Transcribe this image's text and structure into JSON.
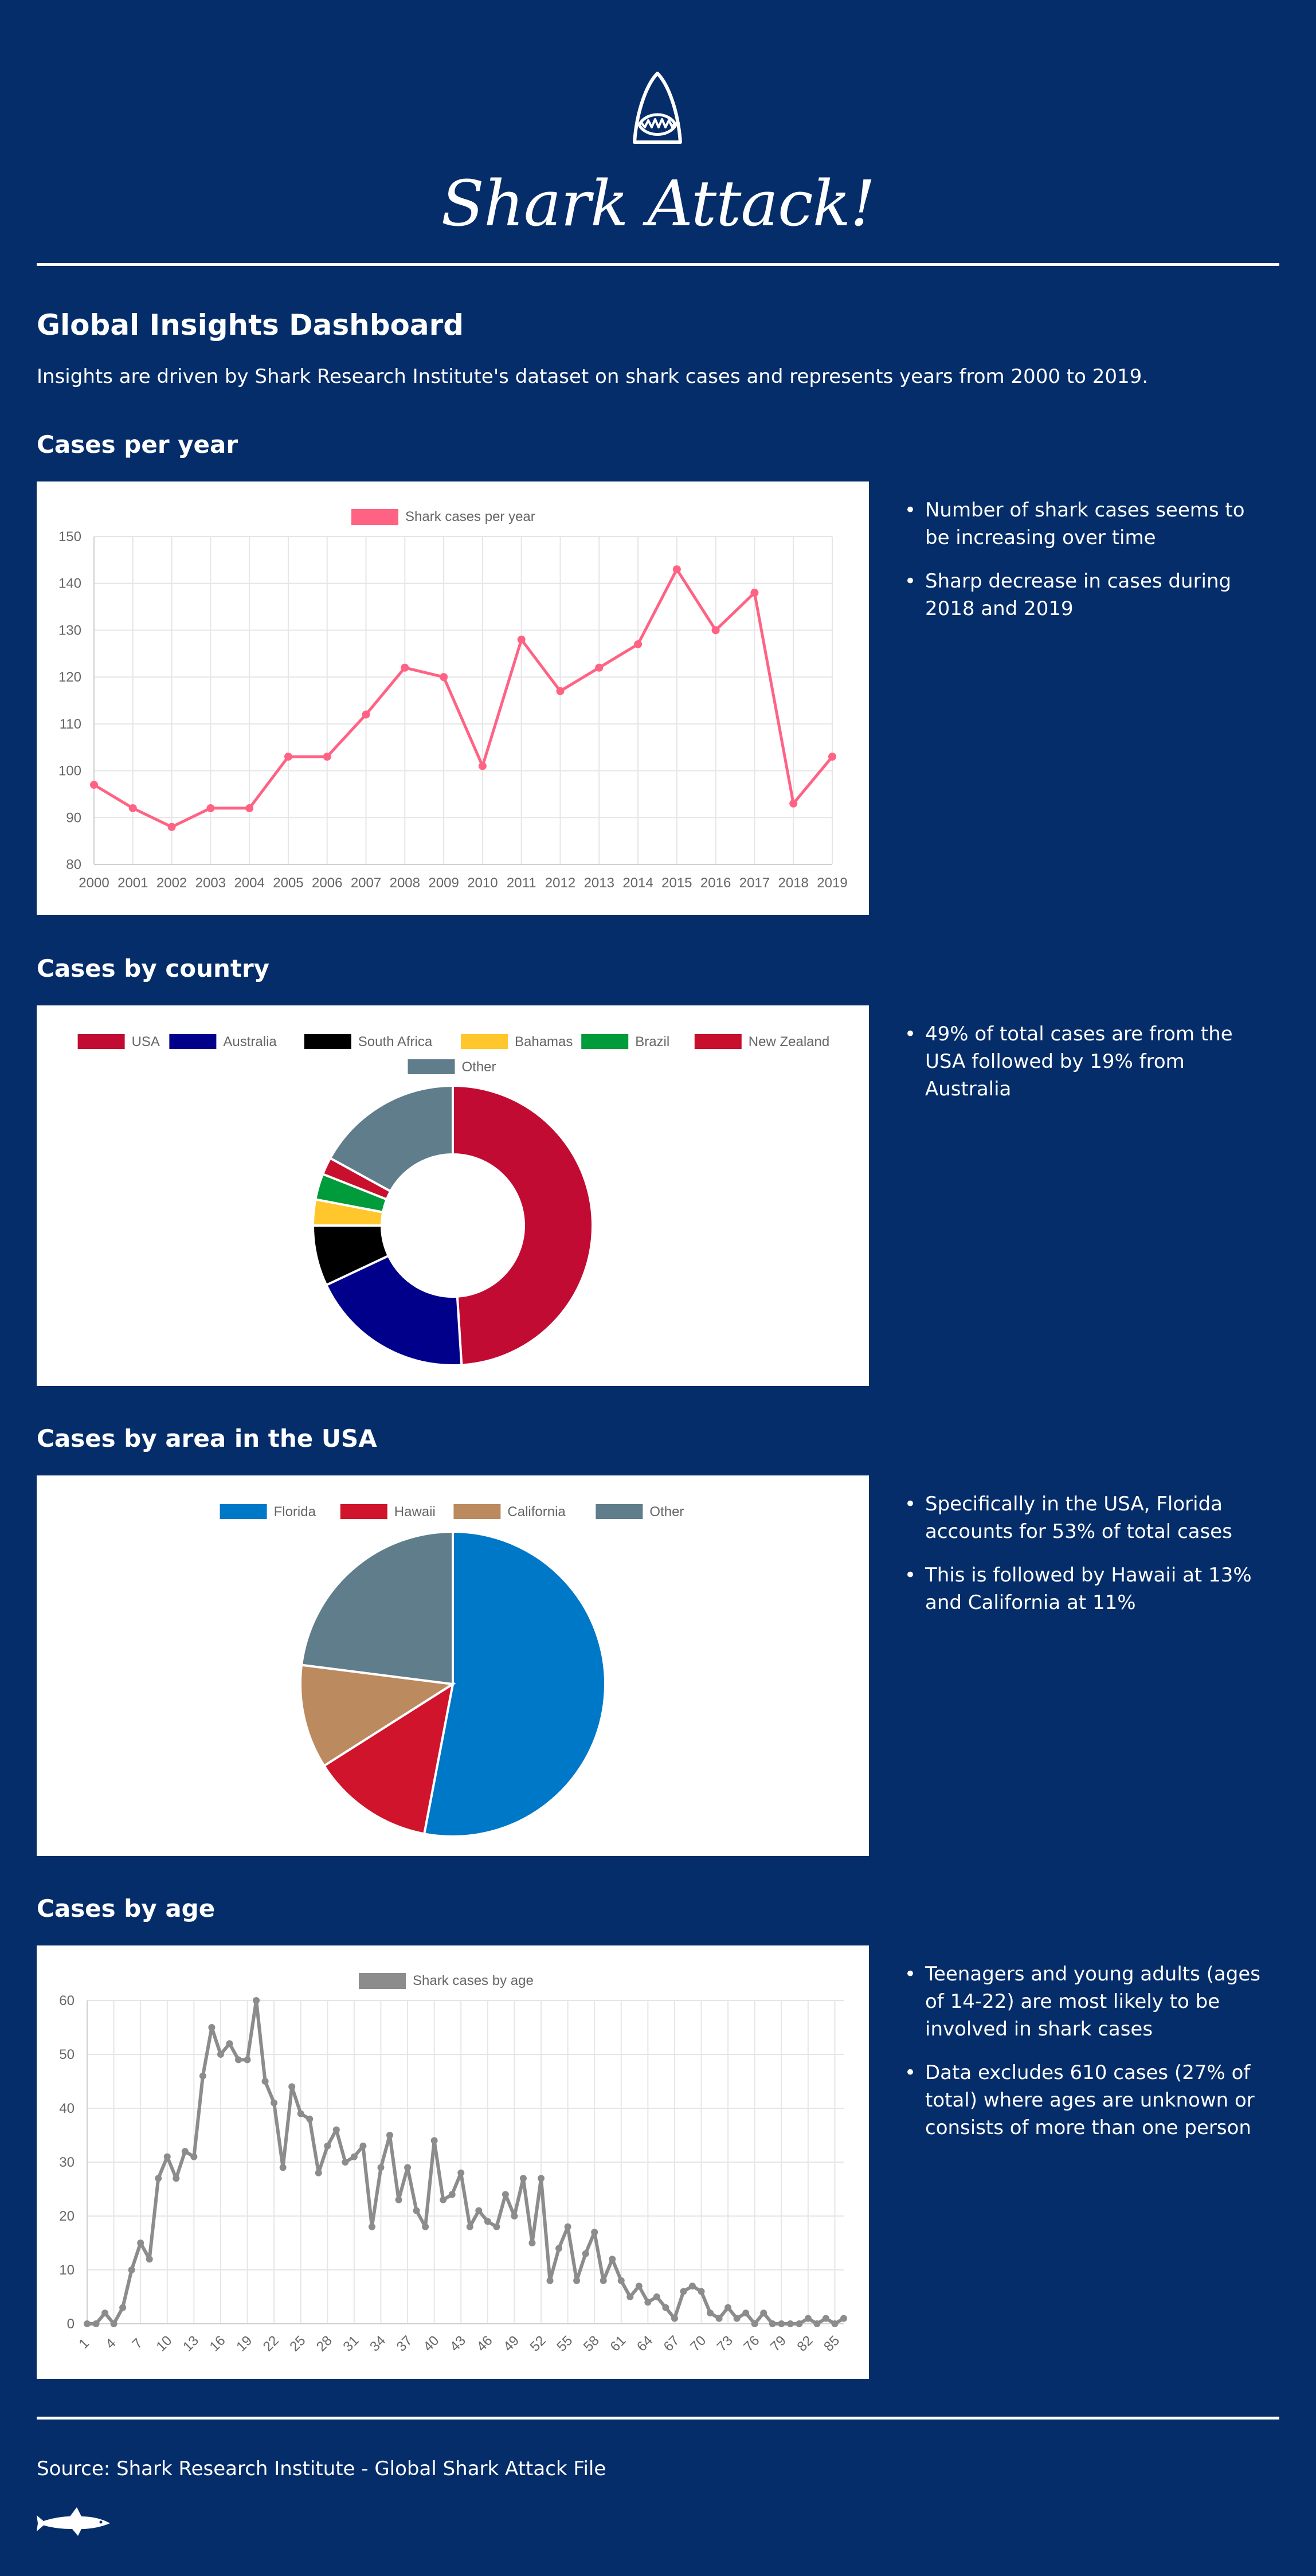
{
  "header": {
    "title": "Shark Attack!",
    "logo_icon": "shark-jaws-icon"
  },
  "intro": {
    "heading": "Global Insights Dashboard",
    "description": "Insights are driven by Shark Research Institute's dataset on shark cases and represents years from 2000 to 2019."
  },
  "colors": {
    "background": "#052d69",
    "cases_line": "#ff6384",
    "age_line": "#8c8c8c"
  },
  "sections": [
    {
      "title": "Cases per year",
      "insights": [
        "Number of shark cases seems to be increasing over time",
        "Sharp decrease in cases during 2018 and 2019"
      ]
    },
    {
      "title": "Cases by country",
      "insights": [
        "49% of total cases are from the USA followed by 19% from Australia"
      ]
    },
    {
      "title": "Cases by area in the USA",
      "insights": [
        "Specifically in the USA, Florida accounts for 53% of total cases",
        "This is followed by Hawaii at 13% and California at 11%"
      ]
    },
    {
      "title": "Cases by age",
      "insights": [
        "Teenagers and young adults (ages of 14-22) are most likely to be involved in shark cases",
        "Data excludes 610 cases (27% of total) where ages are unknown or consists of more than one person"
      ]
    }
  ],
  "chart_data": [
    {
      "type": "line",
      "legend_position": "top",
      "grid": true,
      "series": [
        {
          "name": "Shark cases per year",
          "color": "#ff6384",
          "x": [
            "2000",
            "2001",
            "2002",
            "2003",
            "2004",
            "2005",
            "2006",
            "2007",
            "2008",
            "2009",
            "2010",
            "2011",
            "2012",
            "2013",
            "2014",
            "2015",
            "2016",
            "2017",
            "2018",
            "2019"
          ],
          "values": [
            97,
            92,
            88,
            92,
            92,
            103,
            103,
            112,
            122,
            120,
            101,
            128,
            117,
            122,
            127,
            143,
            130,
            138,
            93,
            103
          ]
        }
      ],
      "ylim": [
        80,
        150
      ],
      "yticks": [
        80,
        90,
        100,
        110,
        120,
        130,
        140,
        150
      ]
    },
    {
      "type": "pie",
      "donut": true,
      "legend_position": "top",
      "categories": [
        "USA",
        "Australia",
        "South Africa",
        "Bahamas",
        "Brazil",
        "New Zealand",
        "Other"
      ],
      "values": [
        49,
        19,
        7,
        3,
        3,
        2,
        17
      ],
      "colors": [
        "#c10b33",
        "#00008b",
        "#000000",
        "#ffc72c",
        "#009b3a",
        "#c8102e",
        "#607d8b"
      ]
    },
    {
      "type": "pie",
      "donut": false,
      "legend_position": "top",
      "categories": [
        "Florida",
        "Hawaii",
        "California",
        "Other"
      ],
      "values": [
        53,
        13,
        11,
        23
      ],
      "colors": [
        "#0078c8",
        "#cf142b",
        "#bc8a5f",
        "#607d8b"
      ]
    },
    {
      "type": "line",
      "legend_position": "top",
      "grid": true,
      "series": [
        {
          "name": "Shark cases by age",
          "color": "#8c8c8c",
          "x_start": 1,
          "values": [
            0,
            0,
            2,
            0,
            3,
            10,
            15,
            12,
            27,
            31,
            27,
            32,
            31,
            46,
            55,
            50,
            52,
            49,
            49,
            60,
            45,
            41,
            29,
            44,
            39,
            38,
            28,
            33,
            36,
            30,
            31,
            33,
            18,
            29,
            35,
            23,
            29,
            21,
            18,
            34,
            23,
            24,
            28,
            18,
            21,
            19,
            18,
            24,
            20,
            27,
            15,
            27,
            8,
            14,
            18,
            8,
            13,
            17,
            8,
            12,
            8,
            5,
            7,
            4,
            5,
            3,
            1,
            6,
            7,
            6,
            2,
            1,
            3,
            1,
            2,
            0,
            2,
            0,
            0,
            0,
            0,
            1,
            0,
            1,
            0,
            1
          ]
        }
      ],
      "ylim": [
        0,
        60
      ],
      "yticks": [
        0,
        10,
        20,
        30,
        40,
        50,
        60
      ],
      "xticks": [
        "1",
        "4",
        "7",
        "10",
        "13",
        "16",
        "19",
        "22",
        "25",
        "28",
        "31",
        "34",
        "37",
        "40",
        "43",
        "46",
        "49",
        "52",
        "55",
        "58",
        "61",
        "64",
        "67",
        "70",
        "73",
        "76",
        "79",
        "82",
        "85"
      ]
    }
  ],
  "footer": {
    "source": "Source: Shark Research Institute - Global Shark Attack File",
    "shark_icon": "shark-silhouette-icon"
  }
}
